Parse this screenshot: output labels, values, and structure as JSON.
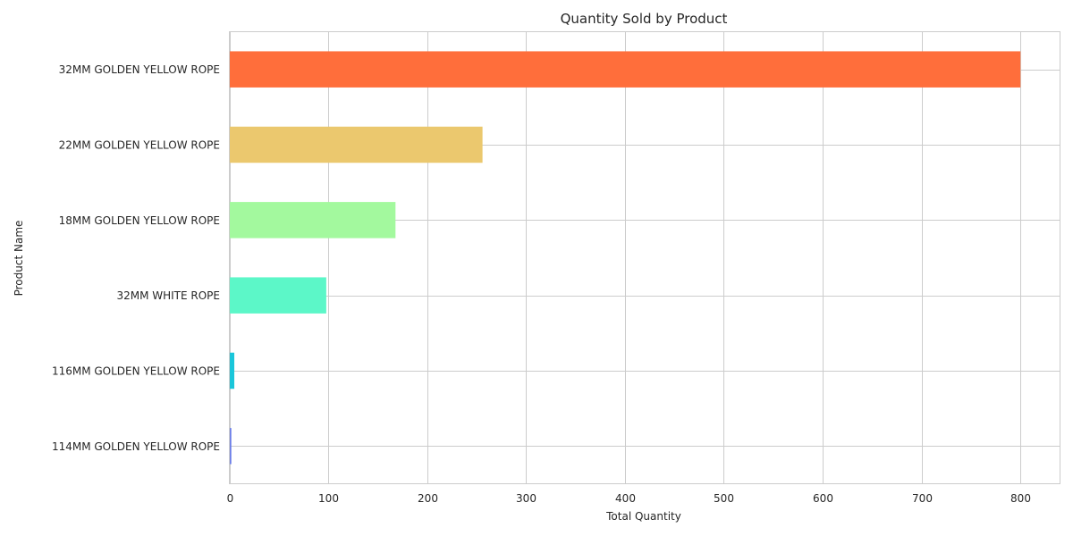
{
  "chart_data": {
    "type": "bar",
    "orientation": "horizontal",
    "title": "Quantity Sold by Product",
    "xlabel": "Total Quantity",
    "ylabel": "Product Name",
    "categories": [
      "32MM GOLDEN YELLOW ROPE",
      "22MM GOLDEN YELLOW ROPE",
      "18MM GOLDEN YELLOW ROPE",
      "32MM WHITE ROPE",
      "116MM GOLDEN YELLOW ROPE",
      "114MM GOLDEN YELLOW ROPE"
    ],
    "values": [
      800,
      256,
      168,
      98,
      5,
      2
    ],
    "colors": [
      "#ff6e3b",
      "#ebc86e",
      "#a3f99e",
      "#5cf7c8",
      "#1ac6da",
      "#6a7de8"
    ],
    "xlim": [
      0,
      840
    ],
    "xticks": [
      0,
      100,
      200,
      300,
      400,
      500,
      600,
      700,
      800
    ],
    "grid": true,
    "legend": "none"
  }
}
